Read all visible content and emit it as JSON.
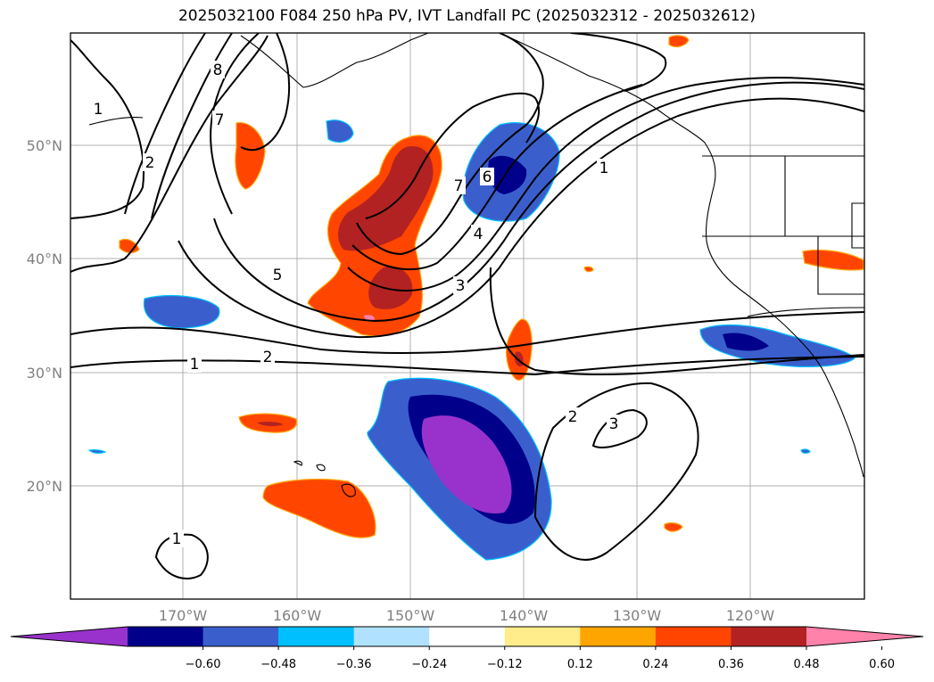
{
  "title": "2025032100 F084 250 hPa PV, IVT Landfall PC (2025032312 - 2025032612)",
  "lat_labels": [
    "50°N",
    "40°N",
    "30°N",
    "20°N"
  ],
  "lon_labels": [
    "170°W",
    "160°W",
    "150°W",
    "140°W",
    "130°W",
    "120°W"
  ],
  "colorbar": {
    "colors": [
      "#9932cc",
      "#00008b",
      "#3a5fcd",
      "#00bfff",
      "#b0e2ff",
      "#ffffff",
      "#ffec8b",
      "#ffa500",
      "#ff4500",
      "#b22222",
      "#ff82ab"
    ],
    "tick_labels": [
      "−0.60",
      "−0.48",
      "−0.36",
      "−0.24",
      "−0.12",
      "0.12",
      "0.24",
      "0.36",
      "0.48",
      "0.60"
    ]
  },
  "contour_labels": [
    "8",
    "7",
    "1",
    "2",
    "5",
    "1",
    "2",
    "7",
    "6",
    "4",
    "3",
    "1",
    "2",
    "3",
    "1"
  ]
}
